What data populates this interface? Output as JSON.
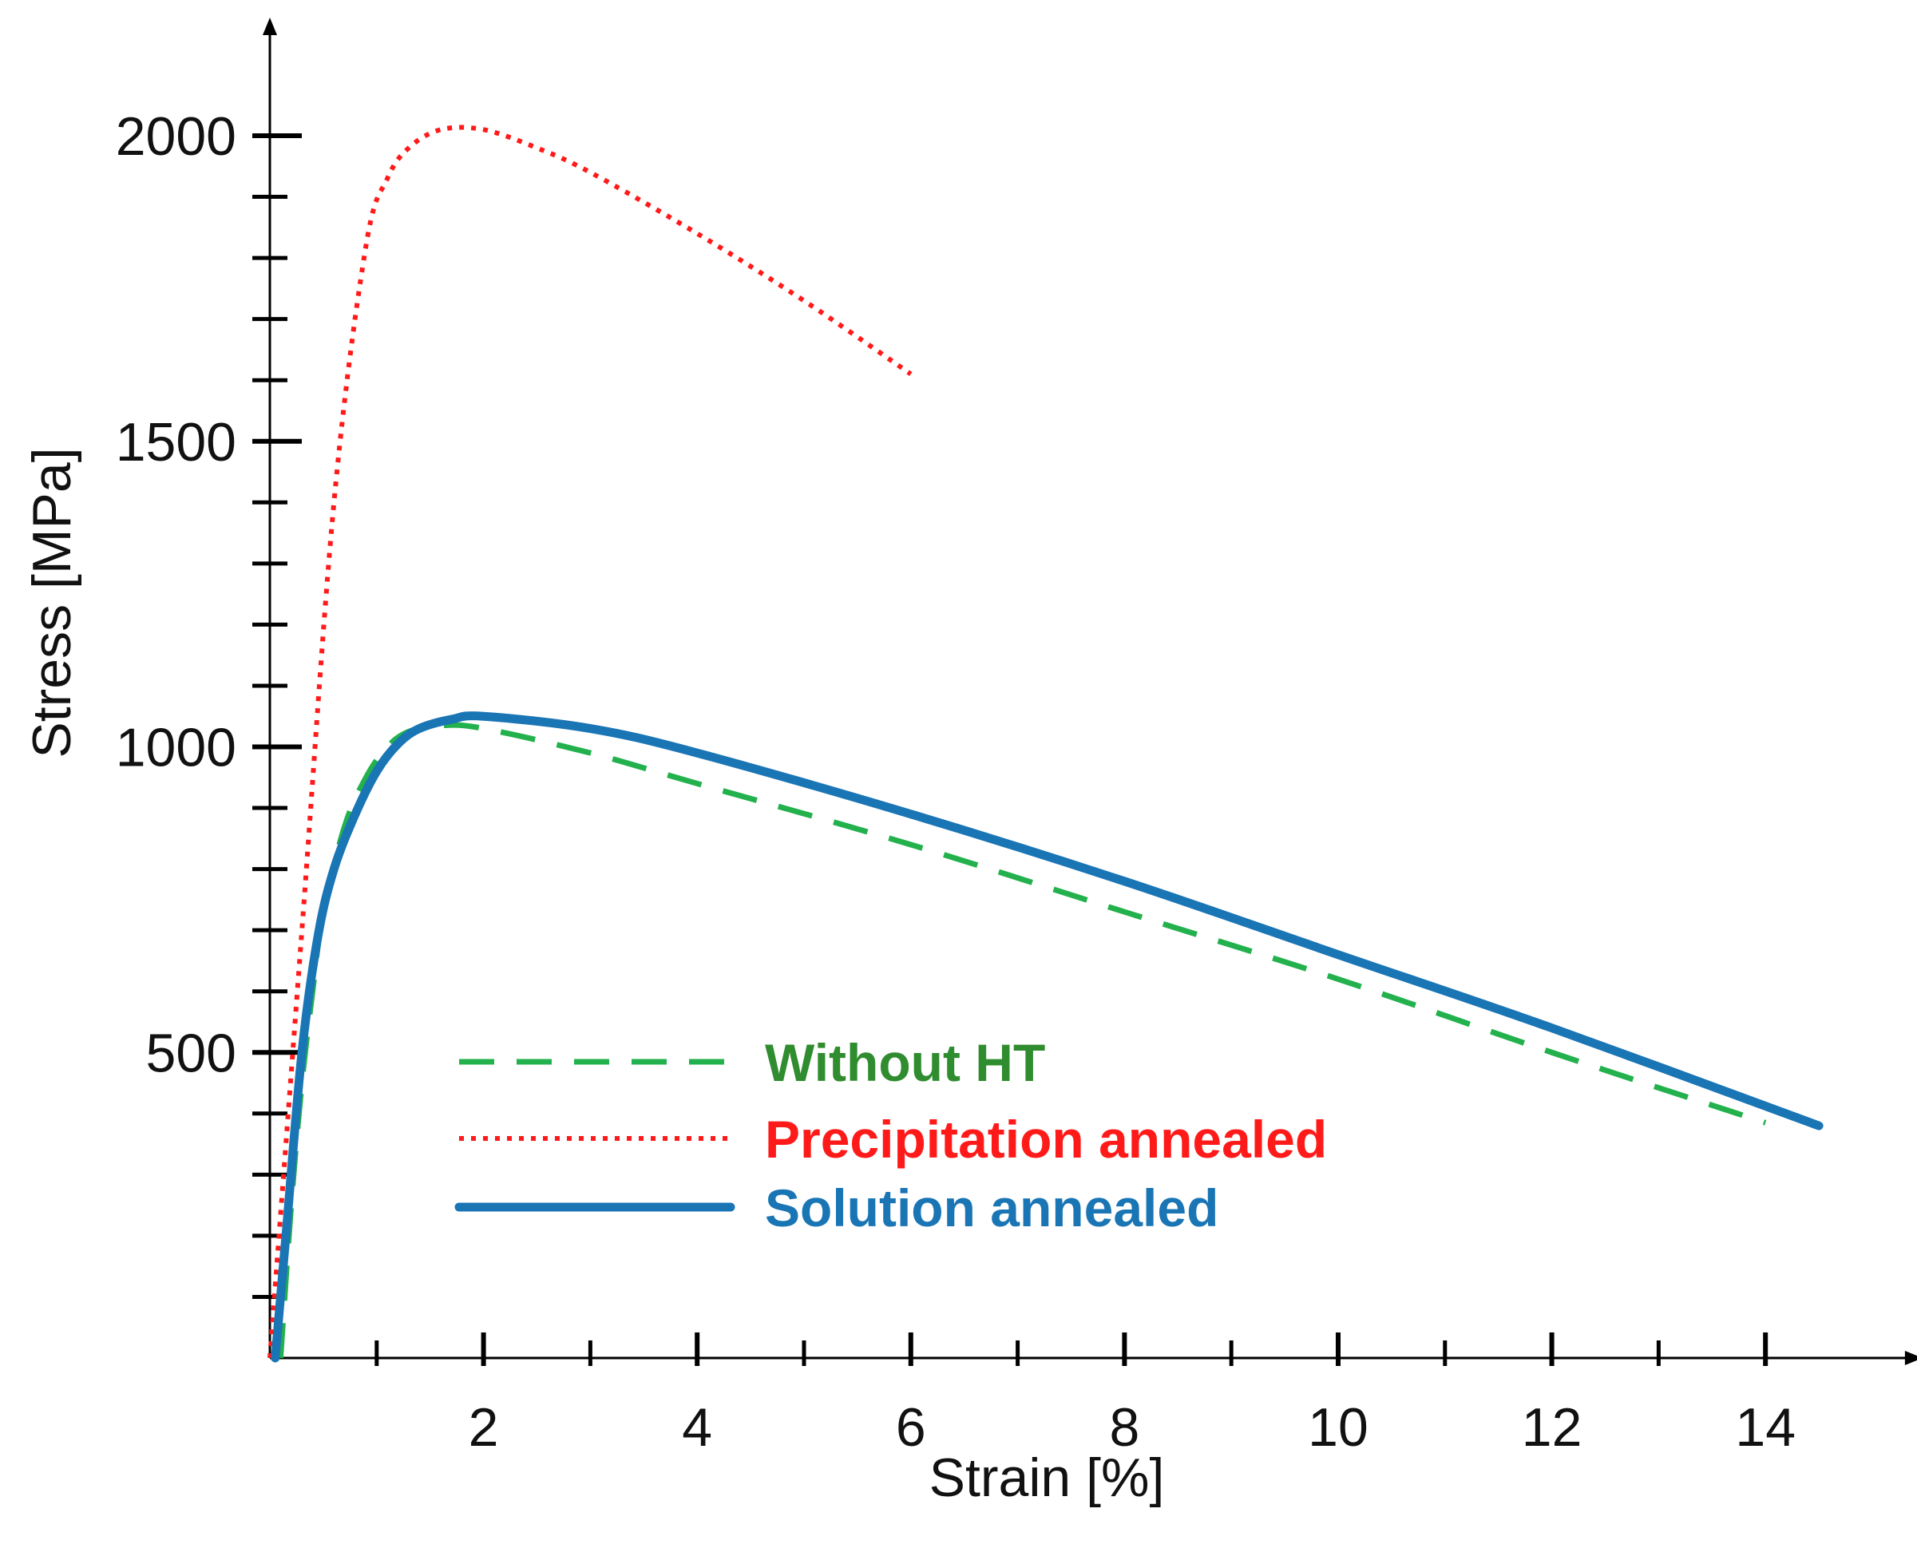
{
  "chart_data": {
    "type": "line",
    "title": "",
    "xlabel": "Strain [%]",
    "ylabel": "Stress [MPa]",
    "xlim": [
      0,
      15.5
    ],
    "ylim": [
      0,
      2200
    ],
    "x_tick_values": [
      2,
      4,
      6,
      8,
      10,
      12,
      14
    ],
    "x_tick_labels": [
      "2",
      "4",
      "6",
      "8",
      "10",
      "12",
      "14"
    ],
    "y_tick_values": [
      500,
      1000,
      1500,
      2000
    ],
    "y_tick_labels": [
      "500",
      "1000",
      "1500",
      "2000"
    ],
    "x_minor_step": 1,
    "y_minor_step": 100,
    "grid": false,
    "legend_position": "center",
    "series": [
      {
        "name": "Without HT",
        "color": "#22b14c",
        "style": "dashed",
        "x": [
          0.1,
          0.2,
          0.3,
          0.4,
          0.5,
          0.7,
          0.9,
          1.1,
          1.3,
          1.6,
          2.0,
          3.0,
          4.0,
          6.0,
          8.0,
          10.0,
          12.0,
          14.0
        ],
        "y": [
          0,
          250,
          450,
          600,
          730,
          870,
          950,
          1000,
          1025,
          1035,
          1030,
          990,
          940,
          840,
          730,
          620,
          500,
          385
        ]
      },
      {
        "name": "Precipitation annealed",
        "color": "#ff1a1a",
        "style": "dotted",
        "x": [
          0.0,
          0.3,
          0.6,
          0.9,
          1.1,
          1.3,
          1.6,
          2.0,
          2.5,
          3.0,
          4.0,
          5.0,
          6.0
        ],
        "y": [
          0,
          700,
          1400,
          1820,
          1930,
          1980,
          2010,
          2010,
          1980,
          1940,
          1840,
          1730,
          1610
        ]
      },
      {
        "name": "Solution annealed",
        "color": "#1a75b5",
        "style": "solid",
        "x": [
          0.05,
          0.15,
          0.3,
          0.45,
          0.6,
          0.8,
          1.0,
          1.2,
          1.4,
          1.7,
          2.0,
          3.0,
          4.0,
          6.0,
          8.0,
          10.0,
          12.0,
          14.5
        ],
        "y": [
          0,
          200,
          500,
          690,
          800,
          890,
          960,
          1005,
          1030,
          1045,
          1050,
          1030,
          990,
          890,
          780,
          660,
          540,
          380
        ]
      }
    ]
  }
}
